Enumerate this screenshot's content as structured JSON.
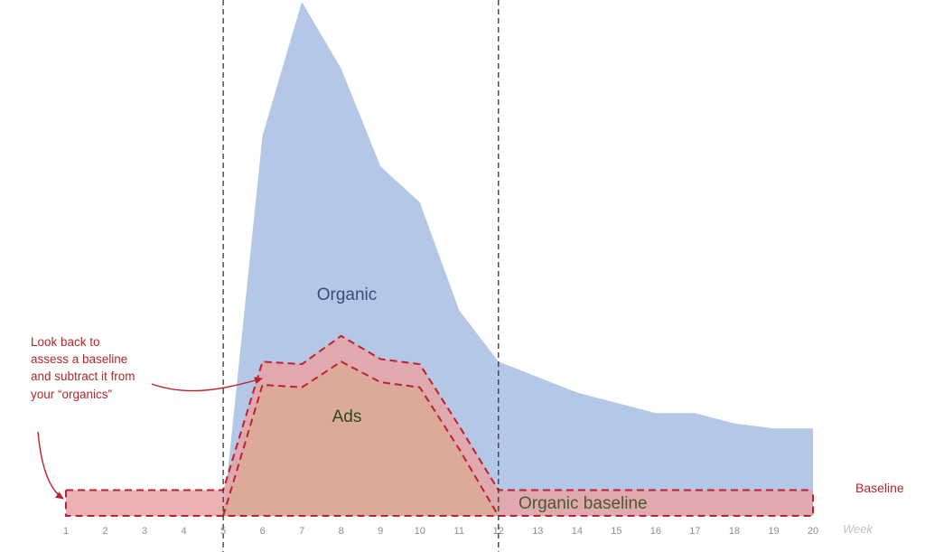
{
  "chart_data": {
    "type": "area",
    "x": [
      1,
      2,
      3,
      4,
      5,
      6,
      7,
      8,
      9,
      10,
      11,
      12,
      13,
      14,
      15,
      16,
      17,
      18,
      19,
      20
    ],
    "xlabel": "Week",
    "xlim": [
      1,
      20
    ],
    "ylim": [
      0,
      100
    ],
    "grid": false,
    "legend": "none",
    "colors": {
      "organic": "#b4c7e7",
      "ads": "#92cd57",
      "baseline_band": "#e8a3a6",
      "baseline_dash": "#c0202a",
      "marker": "#333333",
      "organic_text": "#3a4d78",
      "ads_text": "#2d4a1c",
      "baseline_text": "#4a5a2a",
      "callout_text": "#b3262a"
    },
    "series": [
      {
        "name": "Organic",
        "values": [
          0,
          0,
          0,
          0,
          0,
          74,
          100,
          87,
          68,
          61,
          40,
          30,
          27,
          24,
          22,
          20,
          20,
          18,
          17,
          17
        ]
      },
      {
        "name": "Ads",
        "values": [
          0,
          0,
          0,
          0,
          0,
          25.5,
          25,
          30,
          26,
          25,
          13,
          0,
          0,
          0,
          0,
          0,
          0,
          0,
          0,
          0
        ]
      }
    ],
    "baseline_band": {
      "bottom": 0,
      "top": [
        5,
        5,
        5,
        5,
        5,
        30,
        29.5,
        35,
        30.5,
        29.5,
        17.5,
        5,
        5,
        5,
        5,
        5,
        5,
        5,
        5,
        5
      ]
    },
    "markers": [
      5,
      12
    ],
    "annotations": {
      "organic": "Organic",
      "ads": "Ads",
      "organic_baseline": "Organic baseline",
      "baseline": "Baseline",
      "callout": [
        "Look back to",
        "assess a baseline",
        "and subtract it from",
        "your “organics”"
      ]
    }
  }
}
